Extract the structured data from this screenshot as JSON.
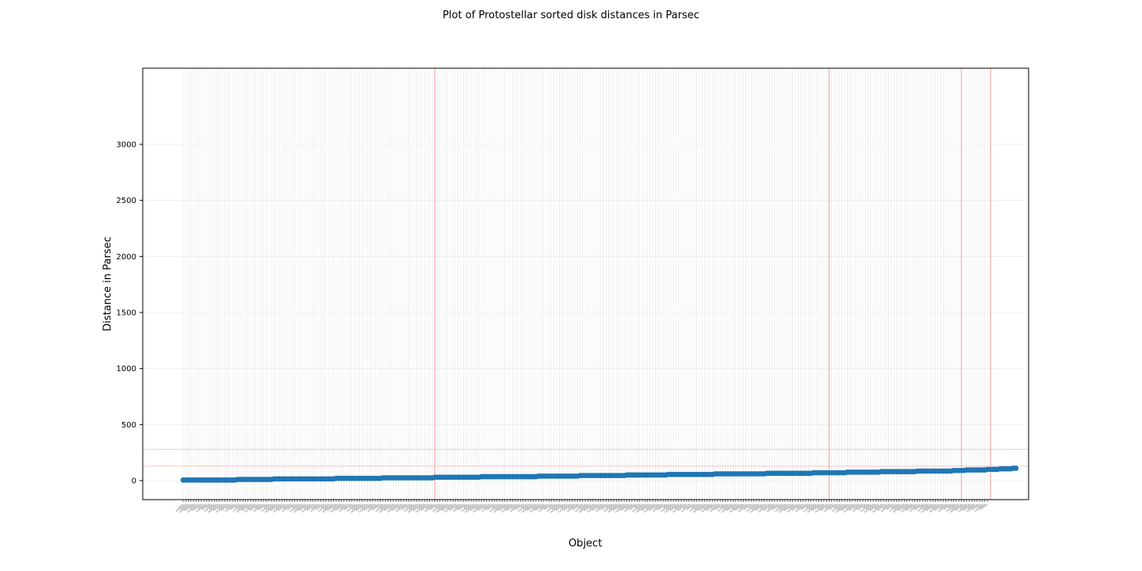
{
  "chart_data": {
    "type": "scatter",
    "title": "Plot of Protostellar sorted disk distances in Parsec",
    "xlabel": "Object",
    "ylabel": "Distance in Parsec",
    "ylim": [
      -175,
      3500
    ],
    "yticks": [
      0,
      500,
      1000,
      1500,
      2000,
      2500,
      3000
    ],
    "n_objects": 311,
    "grid": true,
    "marker_color": "#1f77b4",
    "reference_line_color": "#f4a6a6",
    "reference_vlines_at_index": [
      98,
      250,
      301,
      311
    ],
    "reference_hlines_y": [
      150,
      300
    ],
    "series": [
      {
        "values": [
          5,
          5,
          5,
          5,
          5,
          5,
          5,
          5,
          5,
          5,
          5,
          5,
          5,
          5,
          5,
          5,
          5,
          5,
          5,
          5,
          5,
          10,
          10,
          10,
          10,
          10,
          10,
          10,
          10,
          10,
          10,
          10,
          10,
          10,
          10,
          15,
          15,
          15,
          15,
          15,
          15,
          15,
          15,
          15,
          15,
          15,
          15,
          15,
          15,
          15,
          15,
          15,
          15,
          15,
          15,
          15,
          15,
          15,
          15,
          20,
          20,
          20,
          20,
          20,
          20,
          20,
          20,
          20,
          20,
          20,
          20,
          20,
          20,
          20,
          20,
          20,
          20,
          25,
          25,
          25,
          25,
          25,
          25,
          25,
          25,
          25,
          25,
          25,
          25,
          25,
          25,
          25,
          25,
          25,
          25,
          25,
          25,
          30,
          30,
          30,
          30,
          30,
          30,
          30,
          30,
          30,
          30,
          30,
          30,
          30,
          30,
          30,
          30,
          30,
          30,
          35,
          35,
          35,
          35,
          35,
          35,
          35,
          35,
          35,
          35,
          35,
          35,
          35,
          35,
          35,
          35,
          35,
          35,
          35,
          35,
          35,
          35,
          40,
          40,
          40,
          40,
          40,
          40,
          40,
          40,
          40,
          40,
          40,
          40,
          40,
          40,
          40,
          40,
          45,
          45,
          45,
          45,
          45,
          45,
          45,
          45,
          45,
          45,
          45,
          45,
          45,
          45,
          45,
          45,
          45,
          45,
          50,
          50,
          50,
          50,
          50,
          50,
          50,
          50,
          50,
          50,
          50,
          50,
          50,
          50,
          50,
          50,
          55,
          55,
          55,
          55,
          55,
          55,
          55,
          55,
          55,
          55,
          55,
          55,
          55,
          55,
          55,
          55,
          55,
          55,
          60,
          60,
          60,
          60,
          60,
          60,
          60,
          60,
          60,
          60,
          60,
          60,
          60,
          60,
          60,
          60,
          60,
          60,
          60,
          60,
          65,
          65,
          65,
          65,
          65,
          65,
          65,
          65,
          65,
          65,
          65,
          65,
          65,
          65,
          65,
          65,
          65,
          65,
          70,
          70,
          70,
          70,
          70,
          70,
          70,
          70,
          70,
          70,
          70,
          70,
          70,
          75,
          75,
          75,
          75,
          75,
          75,
          75,
          75,
          75,
          75,
          75,
          75,
          75,
          80,
          80,
          80,
          80,
          80,
          80,
          80,
          80,
          80,
          80,
          80,
          80,
          80,
          80,
          85,
          85,
          85,
          85,
          85,
          85,
          85,
          85,
          85,
          85,
          85,
          85,
          85,
          85,
          90,
          90,
          90,
          90,
          90,
          95,
          95,
          95,
          95,
          95,
          95,
          95,
          95,
          100,
          100,
          100,
          100,
          100,
          105,
          105,
          105,
          105,
          105,
          110,
          110
        ]
      }
    ]
  }
}
